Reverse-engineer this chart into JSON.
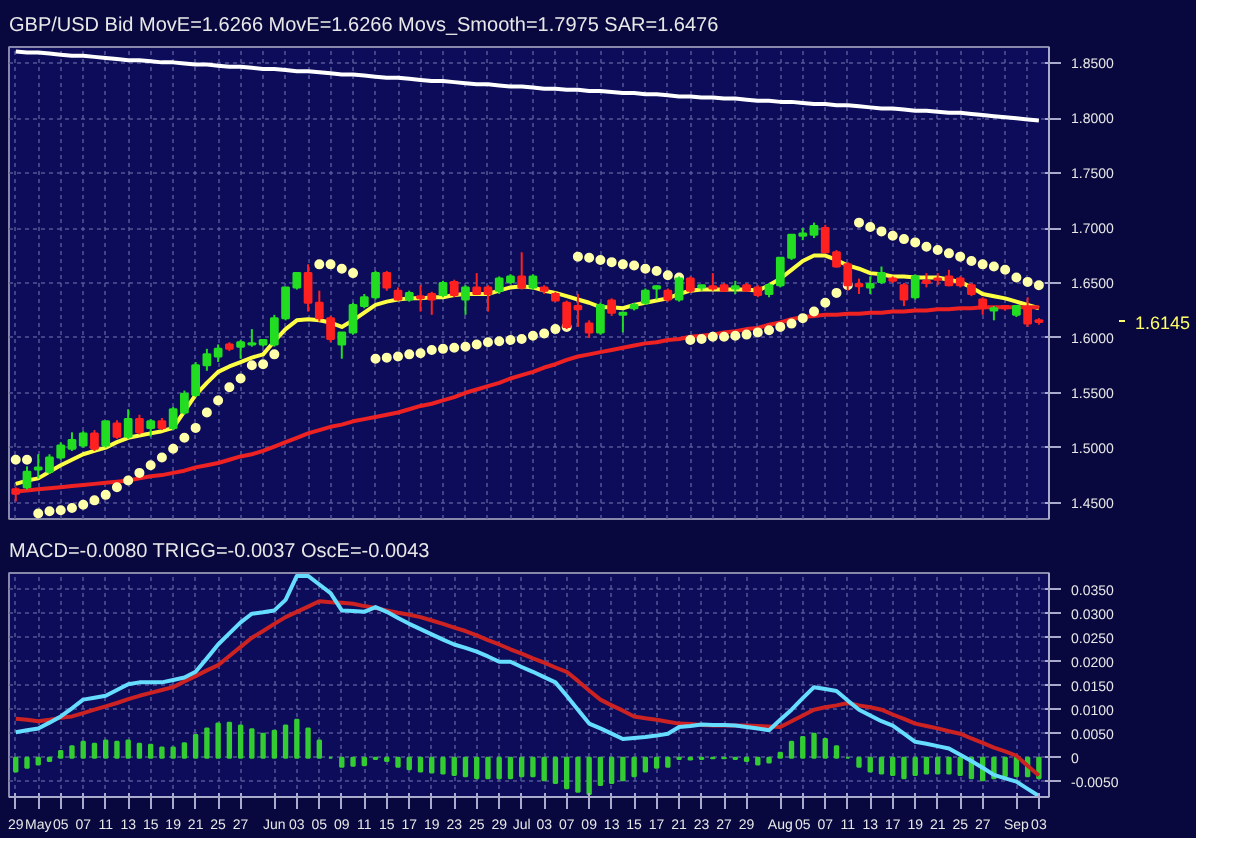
{
  "chart_data": [
    {
      "type": "candlestick",
      "title": "GBP/USD Bid MovE=1.6266 MovE=1.6266 Movs_Smooth=1.7975 SAR=1.6476",
      "categories": [
        null,
        null,
        null,
        null,
        null,
        null,
        null,
        null,
        null,
        null,
        null,
        null,
        null,
        null,
        null,
        null,
        null,
        null,
        null,
        null,
        null,
        null,
        null,
        null,
        null,
        null,
        null,
        null,
        null,
        null,
        null,
        null,
        null,
        null,
        null,
        null,
        null,
        null,
        null,
        null,
        null,
        null,
        null,
        null,
        null,
        null,
        null,
        null,
        null,
        null,
        null,
        null,
        null,
        null,
        null,
        null,
        null,
        null,
        null,
        null,
        null,
        null,
        null,
        null,
        null,
        null,
        null,
        null,
        null,
        null,
        null,
        null,
        null,
        null,
        null,
        null,
        null,
        null,
        null,
        null,
        null,
        null,
        null,
        null,
        null,
        null,
        null,
        null,
        null,
        null,
        null,
        null
      ],
      "ohlc": [
        [
          1.462,
          1.464,
          1.451,
          1.458
        ],
        [
          1.464,
          1.483,
          1.462,
          1.478
        ],
        [
          1.48,
          1.494,
          1.472,
          1.482
        ],
        [
          1.478,
          1.494,
          1.476,
          1.491
        ],
        [
          1.491,
          1.505,
          1.489,
          1.502
        ],
        [
          1.499,
          1.514,
          1.497,
          1.507
        ],
        [
          1.502,
          1.515,
          1.5,
          1.513
        ],
        [
          1.513,
          1.516,
          1.497,
          1.499
        ],
        [
          1.502,
          1.524,
          1.5,
          1.524
        ],
        [
          1.522,
          1.525,
          1.508,
          1.51
        ],
        [
          1.51,
          1.535,
          1.508,
          1.526
        ],
        [
          1.526,
          1.53,
          1.512,
          1.514
        ],
        [
          1.518,
          1.526,
          1.51,
          1.524
        ],
        [
          1.524,
          1.527,
          1.516,
          1.518
        ],
        [
          1.518,
          1.537,
          1.516,
          1.535
        ],
        [
          1.532,
          1.552,
          1.53,
          1.549
        ],
        [
          1.548,
          1.578,
          1.546,
          1.575
        ],
        [
          1.575,
          1.59,
          1.57,
          1.585
        ],
        [
          1.583,
          1.594,
          1.578,
          1.59
        ],
        [
          1.594,
          1.596,
          1.588,
          1.59
        ],
        [
          1.592,
          1.598,
          1.581,
          1.596
        ],
        [
          1.594,
          1.608,
          1.592,
          1.595
        ],
        [
          1.594,
          1.599,
          1.592,
          1.598
        ],
        [
          1.594,
          1.621,
          1.592,
          1.618
        ],
        [
          1.618,
          1.646,
          1.616,
          1.646
        ],
        [
          1.646,
          1.659,
          1.644,
          1.659
        ],
        [
          1.659,
          1.667,
          1.624,
          1.632
        ],
        [
          1.632,
          1.643,
          1.615,
          1.618
        ],
        [
          1.618,
          1.62,
          1.596,
          1.599
        ],
        [
          1.594,
          1.605,
          1.581,
          1.605
        ],
        [
          1.605,
          1.632,
          1.603,
          1.63
        ],
        [
          1.629,
          1.64,
          1.627,
          1.637
        ],
        [
          1.637,
          1.661,
          1.635,
          1.659
        ],
        [
          1.659,
          1.661,
          1.643,
          1.646
        ],
        [
          1.643,
          1.646,
          1.634,
          1.635
        ],
        [
          1.635,
          1.643,
          1.633,
          1.641
        ],
        [
          1.638,
          1.648,
          1.624,
          1.636
        ],
        [
          1.64,
          1.642,
          1.621,
          1.635
        ],
        [
          1.639,
          1.652,
          1.637,
          1.65
        ],
        [
          1.651,
          1.653,
          1.637,
          1.639
        ],
        [
          1.635,
          1.648,
          1.621,
          1.646
        ],
        [
          1.646,
          1.659,
          1.639,
          1.64
        ],
        [
          1.646,
          1.648,
          1.624,
          1.64
        ],
        [
          1.643,
          1.656,
          1.64,
          1.654
        ],
        [
          1.651,
          1.658,
          1.649,
          1.656
        ],
        [
          1.656,
          1.678,
          1.644,
          1.646
        ],
        [
          1.646,
          1.658,
          1.644,
          1.656
        ],
        [
          1.646,
          1.648,
          1.64,
          1.643
        ],
        [
          1.64,
          1.642,
          1.633,
          1.634
        ],
        [
          1.632,
          1.634,
          1.608,
          1.61
        ],
        [
          1.629,
          1.64,
          1.61,
          1.626
        ],
        [
          1.613,
          1.616,
          1.6,
          1.605
        ],
        [
          1.605,
          1.632,
          1.603,
          1.63
        ],
        [
          1.634,
          1.636,
          1.62,
          1.623
        ],
        [
          1.621,
          1.624,
          1.605,
          1.623
        ],
        [
          1.627,
          1.632,
          1.625,
          1.63
        ],
        [
          1.632,
          1.645,
          1.63,
          1.643
        ],
        [
          1.645,
          1.648,
          1.635,
          1.647
        ],
        [
          1.643,
          1.645,
          1.633,
          1.635
        ],
        [
          1.635,
          1.656,
          1.633,
          1.654
        ],
        [
          1.654,
          1.656,
          1.641,
          1.643
        ],
        [
          1.646,
          1.648,
          1.643,
          1.648
        ],
        [
          1.647,
          1.659,
          1.643,
          1.645
        ],
        [
          1.648,
          1.65,
          1.642,
          1.643
        ],
        [
          1.645,
          1.652,
          1.64,
          1.647
        ],
        [
          1.648,
          1.65,
          1.642,
          1.643
        ],
        [
          1.646,
          1.648,
          1.637,
          1.639
        ],
        [
          1.64,
          1.65,
          1.637,
          1.648
        ],
        [
          1.648,
          1.673,
          1.646,
          1.673
        ],
        [
          1.673,
          1.694,
          1.671,
          1.694
        ],
        [
          1.693,
          1.7,
          1.689,
          1.695
        ],
        [
          1.694,
          1.705,
          1.691,
          1.702
        ],
        [
          1.7,
          1.703,
          1.677,
          1.678
        ],
        [
          1.678,
          1.68,
          1.664,
          1.665
        ],
        [
          1.667,
          1.669,
          1.643,
          1.648
        ],
        [
          1.649,
          1.654,
          1.64,
          1.647
        ],
        [
          1.646,
          1.656,
          1.64,
          1.649
        ],
        [
          1.651,
          1.665,
          1.649,
          1.659
        ],
        [
          1.654,
          1.656,
          1.65,
          1.652
        ],
        [
          1.648,
          1.65,
          1.629,
          1.635
        ],
        [
          1.637,
          1.658,
          1.635,
          1.656
        ],
        [
          1.652,
          1.659,
          1.646,
          1.65
        ],
        [
          1.654,
          1.659,
          1.648,
          1.653
        ],
        [
          1.656,
          1.662,
          1.647,
          1.648
        ],
        [
          1.654,
          1.656,
          1.646,
          1.648
        ],
        [
          1.648,
          1.65,
          1.638,
          1.64
        ],
        [
          1.635,
          1.637,
          1.621,
          1.627
        ],
        [
          1.625,
          1.629,
          1.616,
          1.627
        ],
        [
          1.629,
          1.63,
          1.625,
          1.627
        ],
        [
          1.621,
          1.63,
          1.619,
          1.629
        ],
        [
          1.627,
          1.637,
          1.61,
          1.613
        ],
        [
          1.616,
          1.618,
          1.612,
          1.6145
        ]
      ],
      "series": [
        {
          "type": "line",
          "color": "#ffff44",
          "values": [
            1.467,
            1.47,
            1.472,
            1.478,
            1.484,
            1.489,
            1.494,
            1.497,
            1.5,
            1.505,
            1.509,
            1.511,
            1.513,
            1.515,
            1.518,
            1.533,
            1.548,
            1.559,
            1.569,
            1.574,
            1.578,
            1.582,
            1.585,
            1.597,
            1.608,
            1.616,
            1.617,
            1.616,
            1.614,
            1.61,
            1.616,
            1.623,
            1.63,
            1.633,
            1.635,
            1.636,
            1.636,
            1.637,
            1.637,
            1.639,
            1.64,
            1.64,
            1.64,
            1.643,
            1.646,
            1.647,
            1.646,
            1.643,
            1.641,
            1.638,
            1.635,
            1.632,
            1.628,
            1.628,
            1.627,
            1.63,
            1.632,
            1.634,
            1.636,
            1.64,
            1.643,
            1.644,
            1.644,
            1.644,
            1.644,
            1.644,
            1.643,
            1.648,
            1.654,
            1.662,
            1.67,
            1.675,
            1.675,
            1.671,
            1.666,
            1.663,
            1.659,
            1.658,
            1.656,
            1.656,
            1.655,
            1.655,
            1.655,
            1.653,
            1.651,
            1.646,
            1.64,
            1.638,
            1.636,
            1.633,
            1.63,
            1.627
          ]
        },
        {
          "type": "line",
          "color": "#ee2222",
          "values": [
            1.46,
            1.461,
            1.462,
            1.463,
            1.464,
            1.465,
            1.466,
            1.467,
            1.468,
            1.469,
            1.47,
            1.472,
            1.474,
            1.475,
            1.477,
            1.479,
            1.482,
            1.484,
            1.486,
            1.489,
            1.492,
            1.494,
            1.497,
            1.501,
            1.505,
            1.509,
            1.513,
            1.516,
            1.519,
            1.521,
            1.524,
            1.526,
            1.528,
            1.53,
            1.532,
            1.535,
            1.538,
            1.54,
            1.543,
            1.546,
            1.55,
            1.553,
            1.556,
            1.559,
            1.563,
            1.566,
            1.569,
            1.573,
            1.576,
            1.58,
            1.583,
            1.585,
            1.587,
            1.589,
            1.591,
            1.593,
            1.595,
            1.596,
            1.598,
            1.599,
            1.601,
            1.602,
            1.603,
            1.605,
            1.606,
            1.608,
            1.609,
            1.612,
            1.614,
            1.617,
            1.619,
            1.62,
            1.621,
            1.621,
            1.622,
            1.622,
            1.623,
            1.623,
            1.624,
            1.624,
            1.625,
            1.625,
            1.626,
            1.626,
            1.627,
            1.627,
            1.628,
            1.628,
            1.628,
            1.628,
            1.628,
            1.628
          ]
        },
        {
          "type": "line",
          "color": "#ffffff",
          "values": [
            1.861,
            1.86,
            1.86,
            1.859,
            1.858,
            1.857,
            1.857,
            1.856,
            1.855,
            1.854,
            1.853,
            1.853,
            1.852,
            1.851,
            1.851,
            1.85,
            1.849,
            1.849,
            1.848,
            1.847,
            1.847,
            1.846,
            1.845,
            1.845,
            1.844,
            1.843,
            1.843,
            1.842,
            1.841,
            1.84,
            1.84,
            1.839,
            1.838,
            1.837,
            1.837,
            1.836,
            1.835,
            1.834,
            1.834,
            1.833,
            1.832,
            1.831,
            1.831,
            1.83,
            1.829,
            1.829,
            1.828,
            1.827,
            1.827,
            1.826,
            1.826,
            1.825,
            1.825,
            1.824,
            1.823,
            1.823,
            1.822,
            1.822,
            1.821,
            1.82,
            1.82,
            1.819,
            1.819,
            1.818,
            1.818,
            1.817,
            1.816,
            1.816,
            1.815,
            1.815,
            1.814,
            1.813,
            1.813,
            1.812,
            1.812,
            1.811,
            1.81,
            1.809,
            1.809,
            1.808,
            1.807,
            1.807,
            1.806,
            1.805,
            1.805,
            1.804,
            1.803,
            1.802,
            1.801,
            1.8,
            1.799,
            1.798
          ]
        },
        {
          "type": "scatter",
          "marker": "circle",
          "color": "#ffffaa",
          "values": [
            1.489,
            1.489,
            1.44,
            1.442,
            1.443,
            1.445,
            1.448,
            1.452,
            1.457,
            1.464,
            1.47,
            1.477,
            1.484,
            1.491,
            1.499,
            1.509,
            1.518,
            1.532,
            1.543,
            1.555,
            1.563,
            1.575,
            1.576,
            1.585,
            null,
            null,
            null,
            1.667,
            1.667,
            1.663,
            1.659,
            null,
            1.581,
            1.582,
            1.583,
            1.585,
            1.586,
            1.589,
            1.59,
            1.591,
            1.592,
            1.594,
            1.596,
            1.597,
            1.598,
            1.599,
            1.602,
            1.604,
            1.608,
            1.61,
            1.674,
            1.673,
            1.671,
            1.669,
            1.667,
            1.666,
            1.663,
            1.661,
            1.657,
            1.655,
            1.598,
            1.599,
            1.601,
            1.601,
            1.602,
            1.603,
            1.605,
            1.607,
            1.61,
            1.613,
            1.618,
            1.624,
            1.632,
            1.641,
            1.648,
            1.705,
            1.701,
            1.697,
            1.693,
            1.69,
            1.687,
            1.683,
            1.68,
            1.677,
            1.674,
            1.67,
            1.667,
            1.665,
            1.662,
            1.655,
            1.651,
            1.648
          ]
        }
      ],
      "ylim": [
        1.435,
        1.865
      ],
      "yticks": [
        {
          "value": 1.45,
          "label": "1.4500"
        },
        {
          "value": 1.5,
          "label": "1.5000"
        },
        {
          "value": 1.55,
          "label": "1.5500"
        },
        {
          "value": 1.6,
          "label": "1.6000"
        },
        {
          "value": 1.65,
          "label": "1.6500"
        },
        {
          "value": 1.7,
          "label": "1.7000"
        },
        {
          "value": 1.75,
          "label": "1.7500"
        },
        {
          "value": 1.8,
          "label": "1.8000"
        },
        {
          "value": 1.85,
          "label": "1.8500"
        }
      ],
      "grid": true,
      "annotations": [
        "1.6145"
      ]
    },
    {
      "type": "line",
      "title": "MACD=-0.0080 TRIGG=-0.0037 OscE=-0.0043",
      "categories": [
        "29",
        null,
        "May",
        null,
        "05",
        null,
        "07",
        null,
        "11",
        null,
        "13",
        null,
        "15",
        null,
        "19",
        null,
        "21",
        null,
        "25",
        null,
        "27",
        null,
        null,
        "Jun",
        null,
        "03",
        null,
        "05",
        null,
        "09",
        null,
        "11",
        null,
        "15",
        null,
        "17",
        null,
        "19",
        null,
        "23",
        null,
        "25",
        null,
        "29",
        null,
        "Jul",
        null,
        "03",
        null,
        "07",
        null,
        "09",
        null,
        "13",
        null,
        "15",
        null,
        "17",
        null,
        "21",
        null,
        "23",
        null,
        "27",
        null,
        "29",
        null,
        null,
        "Aug",
        null,
        "05",
        null,
        "07",
        null,
        "11",
        null,
        "13",
        null,
        "17",
        null,
        "19",
        null,
        "21",
        null,
        "25",
        null,
        "27",
        null,
        null,
        "Sep",
        null,
        "03"
      ],
      "series": [
        {
          "type": "bar",
          "color": "#33cc33",
          "values": [
            -0.0029,
            -0.0021,
            -0.0014,
            -0.0007,
            0.0014,
            0.0024,
            0.0033,
            0.0029,
            0.0036,
            0.0033,
            0.0036,
            0.0029,
            0.0027,
            0.0021,
            0.0021,
            0.003,
            0.0047,
            0.0061,
            0.0071,
            0.0073,
            0.0067,
            0.0059,
            0.005,
            0.0056,
            0.0067,
            0.0079,
            0.0061,
            0.0036,
            0,
            -0.0019,
            -0.0017,
            -0.0016,
            -0.0003,
            -0.0007,
            -0.0019,
            -0.0024,
            -0.0029,
            -0.0031,
            -0.0033,
            -0.0036,
            -0.0039,
            -0.0043,
            -0.0043,
            -0.0043,
            -0.0043,
            -0.0039,
            -0.0039,
            -0.0047,
            -0.0053,
            -0.0064,
            -0.0071,
            -0.0076,
            -0.0057,
            -0.0053,
            -0.0047,
            -0.0039,
            -0.0029,
            -0.0021,
            -0.0019,
            -0.0003,
            -0.0004,
            -0.0003,
            -0.0001,
            -0.0001,
            -0.0003,
            -0.0007,
            -0.0014,
            -0.001,
            0.001,
            0.0033,
            0.0043,
            0.005,
            0.0039,
            0.0024,
            0,
            -0.0019,
            -0.0029,
            -0.0033,
            -0.0036,
            -0.0043,
            -0.0036,
            -0.0033,
            -0.0033,
            -0.0033,
            -0.0036,
            -0.0043,
            -0.0047,
            -0.0043,
            -0.0039,
            -0.0039,
            -0.0039,
            -0.0043
          ]
        },
        {
          "type": "line",
          "color": "#cc2222",
          "values": [
            0.0081,
            0.0079,
            0.0076,
            0.0079,
            0.0083,
            0.0086,
            0.0093,
            0.01,
            0.0107,
            0.0114,
            0.0122,
            0.0129,
            0.0135,
            0.0141,
            0.0147,
            0.0159,
            0.017,
            0.0182,
            0.0193,
            0.0212,
            0.0231,
            0.025,
            0.0264,
            0.0279,
            0.0293,
            0.0304,
            0.0315,
            0.0326,
            0.0324,
            0.0323,
            0.0321,
            0.0316,
            0.0312,
            0.0307,
            0.0302,
            0.0298,
            0.0293,
            0.0286,
            0.0279,
            0.0271,
            0.0264,
            0.0255,
            0.0245,
            0.0236,
            0.0226,
            0.0217,
            0.0207,
            0.0198,
            0.0188,
            0.0179,
            0.016,
            0.014,
            0.0121,
            0.0109,
            0.0098,
            0.0086,
            0.0082,
            0.0079,
            0.0075,
            0.0071,
            0.007,
            0.0068,
            0.0067,
            0.0067,
            0.0067,
            0.0067,
            0.0066,
            0.0065,
            0.0064,
            0.0076,
            0.0088,
            0.01,
            0.0105,
            0.0109,
            0.0114,
            0.0109,
            0.0105,
            0.01,
            0.009,
            0.0081,
            0.0071,
            0.0066,
            0.0061,
            0.0055,
            0.005,
            0.004,
            0.0031,
            0.0021,
            0.0013,
            0.0004,
            -0.0017,
            -0.0037
          ]
        },
        {
          "type": "line",
          "color": "#66ddff",
          "values": [
            0.0053,
            0.0057,
            0.0061,
            0.0073,
            0.0086,
            0.0103,
            0.0121,
            0.0125,
            0.0129,
            0.0141,
            0.0153,
            0.0157,
            0.0157,
            0.0157,
            0.0162,
            0.0167,
            0.0179,
            0.0207,
            0.0236,
            0.0259,
            0.0282,
            0.03,
            0.0303,
            0.0307,
            0.0329,
            0.0379,
            0.0379,
            0.0361,
            0.0343,
            0.0307,
            0.0306,
            0.0304,
            0.0314,
            0.0304,
            0.0291,
            0.0279,
            0.0268,
            0.0257,
            0.0246,
            0.0236,
            0.0229,
            0.0221,
            0.0211,
            0.02,
            0.02,
            0.0189,
            0.0179,
            0.0168,
            0.0157,
            0.0129,
            0.01,
            0.0071,
            0.0061,
            0.005,
            0.0039,
            0.0041,
            0.0043,
            0.0046,
            0.005,
            0.0064,
            0.0066,
            0.0069,
            0.0068,
            0.0068,
            0.0067,
            0.0064,
            0.0061,
            0.0057,
            0.0079,
            0.01,
            0.0124,
            0.0147,
            0.0143,
            0.0139,
            0.0119,
            0.01,
            0.0088,
            0.0076,
            0.0067,
            0.005,
            0.0033,
            0.0029,
            0.0024,
            0.0019,
            0.0006,
            -0.0007,
            -0.0021,
            -0.0036,
            -0.0043,
            -0.005,
            -0.0065,
            -0.008
          ]
        }
      ],
      "ylim": [
        -0.0082,
        0.0385
      ],
      "yticks": [
        {
          "value": -0.005,
          "label": "-0.0050"
        },
        0,
        {
          "value": 0.005,
          "label": "0.0050"
        },
        {
          "value": 0.01,
          "label": "0.0100"
        },
        {
          "value": 0.015,
          "label": "0.0150"
        },
        {
          "value": 0.02,
          "label": "0.0200"
        },
        {
          "value": 0.025,
          "label": "0.0250"
        },
        {
          "value": 0.03,
          "label": "0.0300"
        },
        {
          "value": 0.035,
          "label": "0.0350"
        }
      ],
      "grid": true
    }
  ]
}
